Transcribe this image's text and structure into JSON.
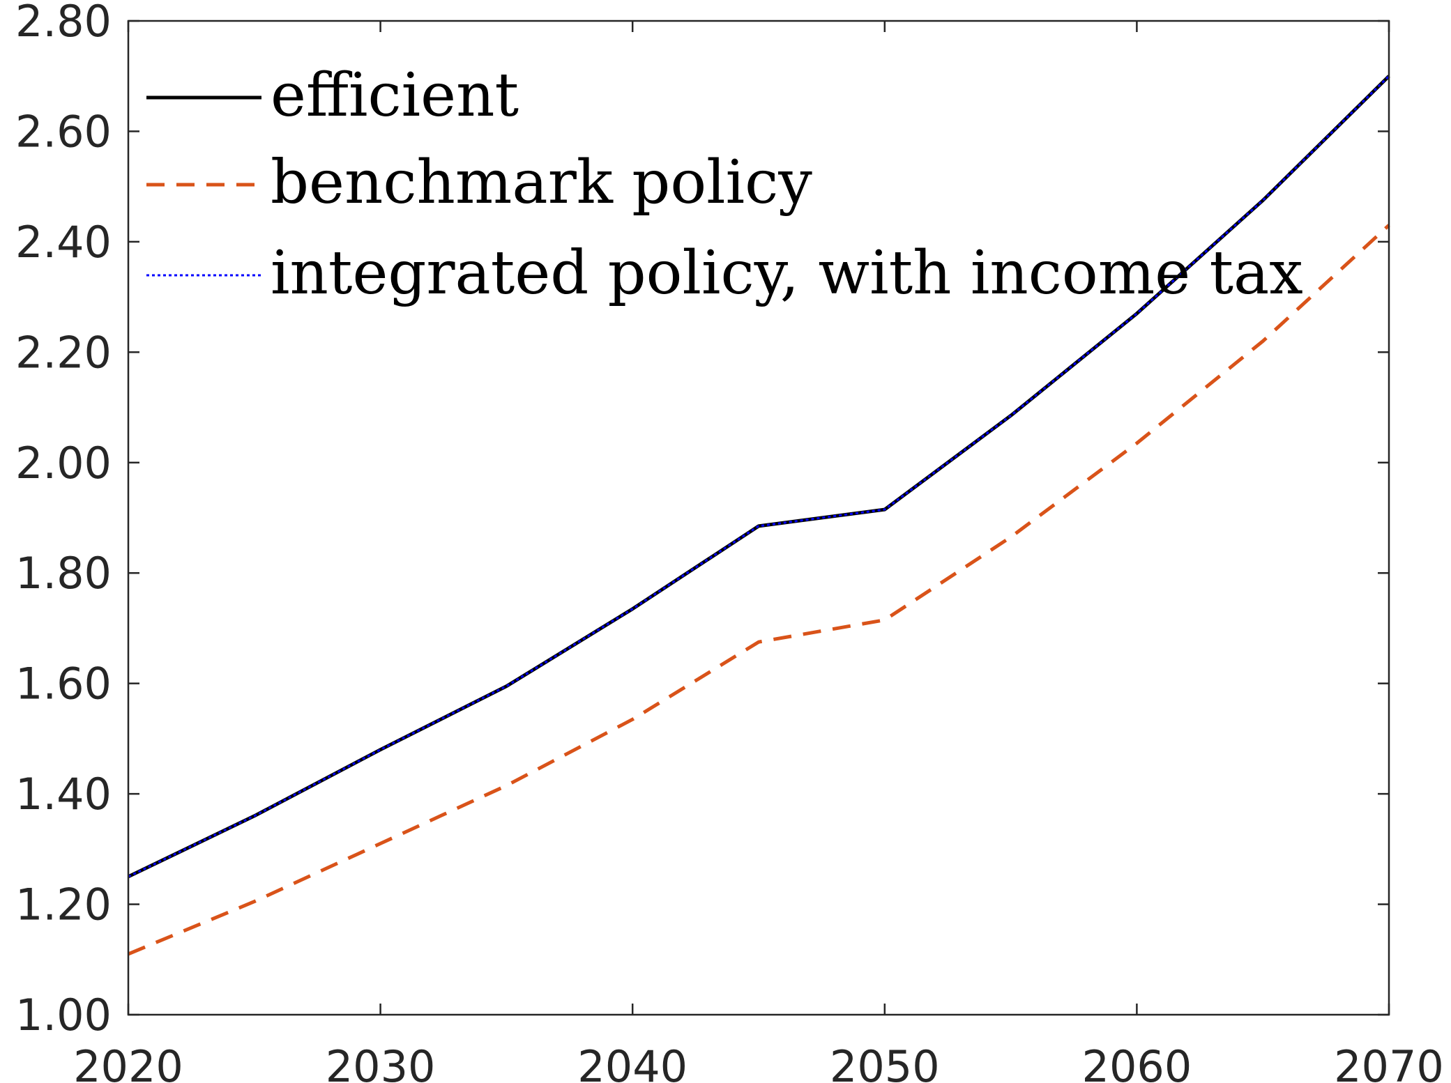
{
  "chart_data": {
    "type": "line",
    "title": "",
    "xlabel": "",
    "ylabel": "",
    "xlim": [
      2020,
      2070
    ],
    "ylim": [
      1.0,
      2.8
    ],
    "x_ticks": [
      2020,
      2030,
      2040,
      2050,
      2060,
      2070
    ],
    "x_tick_labels": [
      "2020",
      "2030",
      "2040",
      "2050",
      "2060",
      "2070"
    ],
    "y_ticks": [
      1.0,
      1.2,
      1.4,
      1.6,
      1.8,
      2.0,
      2.2,
      2.4,
      2.6,
      2.8
    ],
    "y_tick_labels": [
      "1.00",
      "1.20",
      "1.40",
      "1.60",
      "1.80",
      "2.00",
      "2.20",
      "2.40",
      "2.60",
      "2.80"
    ],
    "grid": false,
    "legend_position": "top-left",
    "x": [
      2020,
      2025,
      2030,
      2035,
      2040,
      2045,
      2050,
      2055,
      2060,
      2065,
      2070
    ],
    "series": [
      {
        "name": "efficient",
        "color": "#000000",
        "style": "solid",
        "values": [
          1.25,
          1.36,
          1.48,
          1.595,
          1.735,
          1.885,
          1.915,
          2.085,
          2.27,
          2.475,
          2.7
        ]
      },
      {
        "name": "benchmark policy",
        "color": "#D95319",
        "style": "dashed",
        "values": [
          1.11,
          1.205,
          1.31,
          1.415,
          1.535,
          1.675,
          1.715,
          1.865,
          2.035,
          2.22,
          2.43
        ]
      },
      {
        "name": "integrated policy, with income tax",
        "color": "#0000FF",
        "style": "dotted",
        "values": [
          1.25,
          1.36,
          1.48,
          1.595,
          1.735,
          1.885,
          1.915,
          2.085,
          2.27,
          2.475,
          2.7
        ]
      }
    ]
  }
}
